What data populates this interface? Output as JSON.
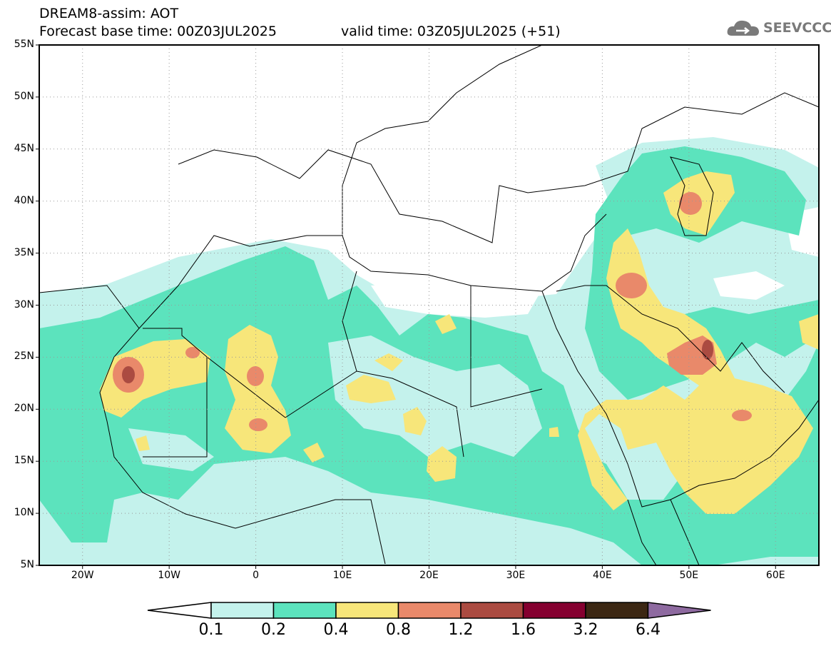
{
  "header": {
    "title": "DREAM8-assim: AOT",
    "base_time": "Forecast base time: 00Z03JUL2025",
    "valid_time": "valid time: 03Z05JUL2025 (+51)",
    "logo_text": "SEEVCCC"
  },
  "axes": {
    "lat_labels": [
      "55N",
      "50N",
      "45N",
      "40N",
      "35N",
      "30N",
      "25N",
      "20N",
      "15N",
      "10N",
      "5N"
    ],
    "lon_labels": [
      "20W",
      "10W",
      "0",
      "10E",
      "20E",
      "30E",
      "40E",
      "50E",
      "60E"
    ]
  },
  "colorbar": {
    "levels": [
      "0.1",
      "0.2",
      "0.4",
      "0.8",
      "1.2",
      "1.6",
      "3.2",
      "6.4"
    ],
    "colors": [
      "#ffffff",
      "#c4f2ec",
      "#5ce3bd",
      "#f7e67a",
      "#e9896a",
      "#ab4b41",
      "#850030",
      "#3c2713",
      "#8e6aa0"
    ]
  }
}
